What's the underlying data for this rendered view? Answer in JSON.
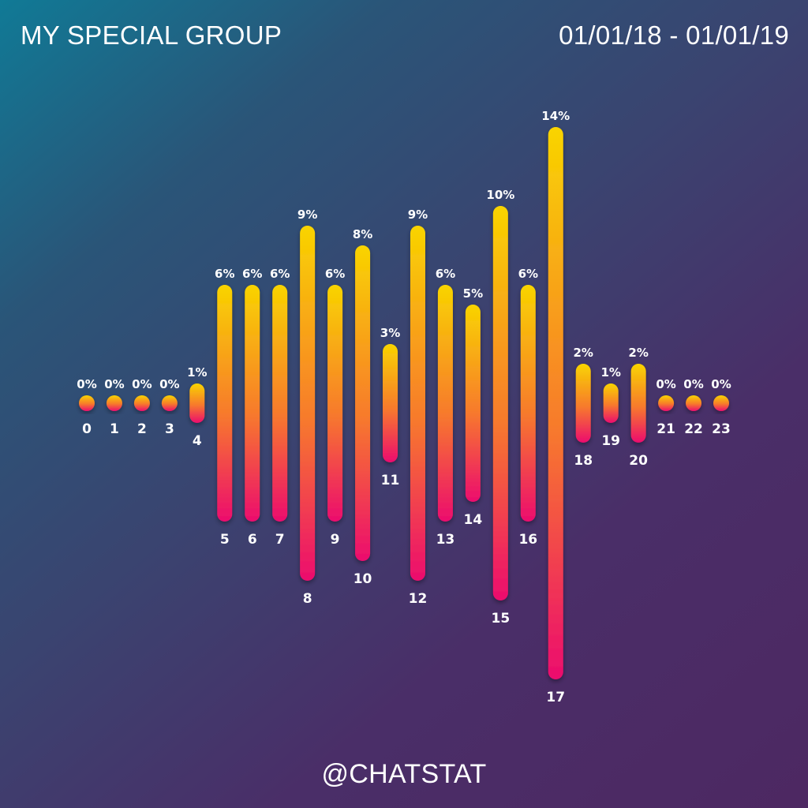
{
  "header": {
    "title": "MY SPECIAL GROUP",
    "date_range": "01/01/18 - 01/01/19"
  },
  "footer": {
    "handle": "@CHATSTAT"
  },
  "colors": {
    "bar_top": "#f9d400",
    "bar_mid": "#f7792d",
    "bar_bottom": "#ec0c6e"
  },
  "chart_data": {
    "type": "bar",
    "orientation": "centered-vertical",
    "categories": [
      "0",
      "1",
      "2",
      "3",
      "4",
      "5",
      "6",
      "7",
      "8",
      "9",
      "10",
      "11",
      "12",
      "13",
      "14",
      "15",
      "16",
      "17",
      "18",
      "19",
      "20",
      "21",
      "22",
      "23"
    ],
    "values": [
      0,
      0,
      0,
      0,
      1,
      6,
      6,
      6,
      9,
      6,
      8,
      3,
      9,
      6,
      5,
      10,
      6,
      14,
      2,
      1,
      2,
      0,
      0,
      0
    ],
    "value_labels": [
      "0%",
      "0%",
      "0%",
      "0%",
      "1%",
      "6%",
      "6%",
      "6%",
      "9%",
      "6%",
      "8%",
      "3%",
      "9%",
      "6%",
      "5%",
      "10%",
      "6%",
      "14%",
      "2%",
      "1%",
      "2%",
      "0%",
      "0%",
      "0%"
    ],
    "unit": "%",
    "grid": false,
    "legend": "none"
  }
}
